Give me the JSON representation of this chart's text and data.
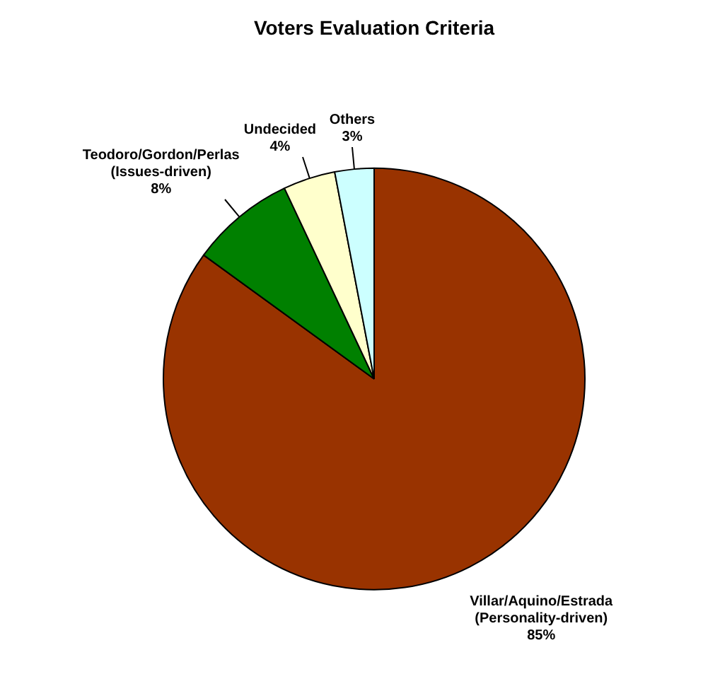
{
  "chart_data": {
    "type": "pie",
    "title": "Voters Evaluation Criteria",
    "categories": [
      "Villar/Aquino/Estrada\n(Personality-driven)",
      "Teodoro/Gordon/Perlas\n(Issues-driven)",
      "Undecided",
      "Others"
    ],
    "values": [
      85,
      8,
      4,
      3
    ],
    "colors": [
      "#993300",
      "#008000",
      "#ffffcc",
      "#ccffff"
    ],
    "value_labels": [
      "85%",
      "8%",
      "4%",
      "3%"
    ],
    "legend": false
  }
}
